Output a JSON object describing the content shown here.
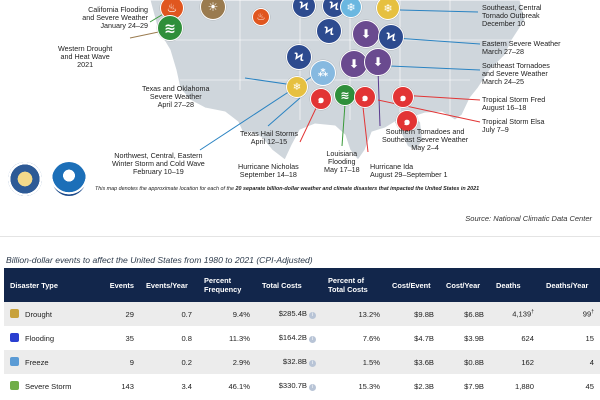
{
  "map": {
    "labels": {
      "ca_flood": [
        "California Flooding",
        "and Severe Weather",
        "January 24–29"
      ],
      "west_drought": [
        "Western Drought",
        "and Heat Wave",
        "2021"
      ],
      "tx_ok": [
        "Texas and Oklahoma",
        "Severe Weather",
        "April 27–28"
      ],
      "tx_hail": [
        "Texas Hail Storms",
        "April 12–15"
      ],
      "cold_wave": [
        "Northwest, Central, Eastern",
        "Winter Storm and Cold Wave",
        "February 10–19"
      ],
      "nicholas": [
        "Hurricane Nicholas",
        "September 14–18"
      ],
      "la_flood": [
        "Louisiana",
        "Flooding",
        "May 17–18"
      ],
      "ida": [
        "Hurricane Ida",
        "August 29–September 1"
      ],
      "south_tornado": [
        "Southern Tornadoes and",
        "Southeast Severe Weather",
        "May 2–4"
      ],
      "se_tornado_dec": [
        "Southeast, Central",
        "Tornado Outbreak",
        "December 10"
      ],
      "east_severe": [
        "Eastern Severe Weather",
        "March 27–28"
      ],
      "se_tornado_mar": [
        "Southeast Tornadoes",
        "and Severe Weather",
        "March 24–25"
      ],
      "fred": [
        "Tropical Storm Fred",
        "August 16–18"
      ],
      "elsa": [
        "Tropical Storm Elsa",
        "July 7–9"
      ]
    },
    "note_prefix": "This map denotes the approximate location for each of the ",
    "note_bold": "20 separate billion-dollar weather and climate disasters that impacted the United States in 2021",
    "icons": {
      "wildfire": "♨",
      "flood": "≋",
      "drought": "☀",
      "severe_storm": "Ϟ",
      "tornado": "⬇",
      "hail": "⁂",
      "winter": "❄",
      "cyclone": "๑"
    },
    "colors": {
      "wildfire": "#e0561f",
      "flood": "#2f8f3a",
      "drought": "#9a7b4f",
      "severe_storm": "#2d4b8f",
      "tornado": "#6a4a8f",
      "cyclone": "#e23434",
      "winter": "#6bb7e0",
      "hail": "#86b9e0",
      "land": "#cfd6dc",
      "lines_blue": "#2a83c2",
      "lines_red": "#e23434",
      "lines_green": "#3a9a3a",
      "lines_purple": "#5a3a8f"
    }
  },
  "source": "Source: National Climatic Data Center",
  "table": {
    "title": "Billion-dollar events to affect the United States from 1980 to 2021 (CPI-Adjusted)",
    "headers": [
      "Disaster Type",
      "Events",
      "Events/Year",
      "Percent Frequency",
      "Total Costs",
      "Percent of Total Costs",
      "Cost/Event",
      "Cost/Year",
      "Deaths",
      "Deaths/Year"
    ],
    "rows": [
      {
        "type": "Drought",
        "color": "#c8a23c",
        "events": "29",
        "per_year": "0.7",
        "freq": "9.4%",
        "total": "$285.4B",
        "pct_cost": "13.2%",
        "cost_event": "$9.8B",
        "cost_year": "$6.8B",
        "deaths": "4,139",
        "deaths_sup": "†",
        "deaths_year": "99",
        "deaths_year_sup": "†"
      },
      {
        "type": "Flooding",
        "color": "#2a3fd0",
        "events": "35",
        "per_year": "0.8",
        "freq": "11.3%",
        "total": "$164.2B",
        "pct_cost": "7.6%",
        "cost_event": "$4.7B",
        "cost_year": "$3.9B",
        "deaths": "624",
        "deaths_sup": "",
        "deaths_year": "15",
        "deaths_year_sup": ""
      },
      {
        "type": "Freeze",
        "color": "#5b9bd5",
        "events": "9",
        "per_year": "0.2",
        "freq": "2.9%",
        "total": "$32.8B",
        "pct_cost": "1.5%",
        "cost_event": "$3.6B",
        "cost_year": "$0.8B",
        "deaths": "162",
        "deaths_sup": "",
        "deaths_year": "4",
        "deaths_year_sup": ""
      },
      {
        "type": "Severe Storm",
        "color": "#70ad47",
        "events": "143",
        "per_year": "3.4",
        "freq": "46.1%",
        "total": "$330.7B",
        "pct_cost": "15.3%",
        "cost_event": "$2.3B",
        "cost_year": "$7.9B",
        "deaths": "1,880",
        "deaths_sup": "",
        "deaths_year": "45",
        "deaths_year_sup": ""
      }
    ]
  }
}
